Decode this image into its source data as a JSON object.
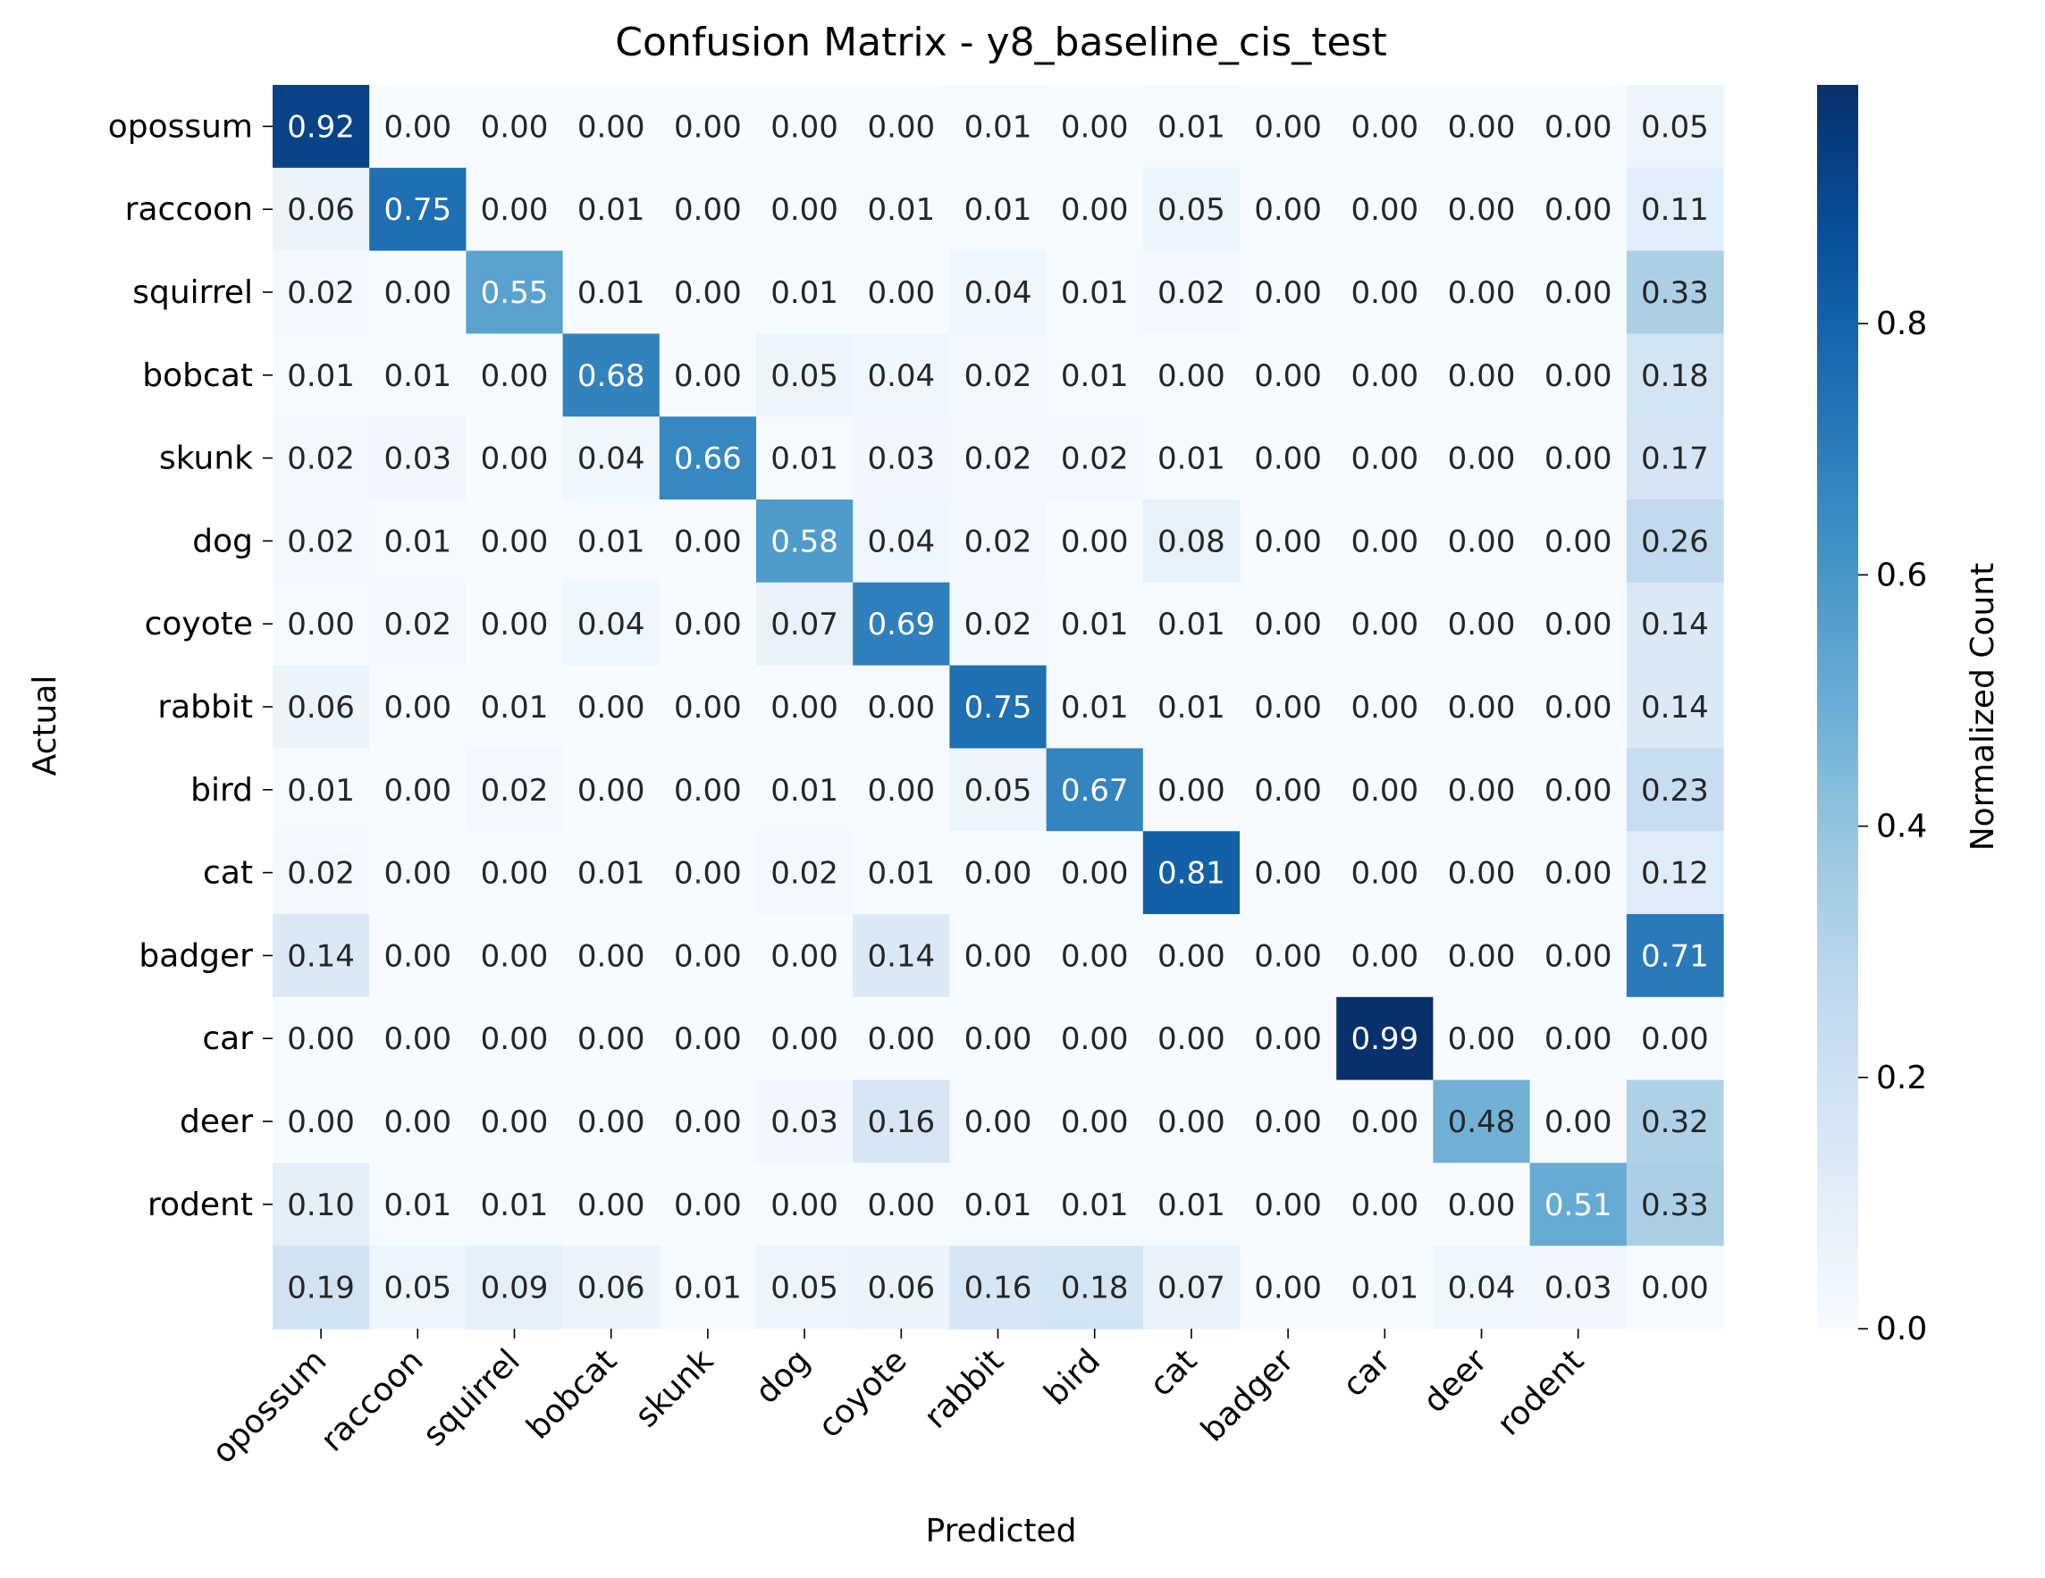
{
  "chart_data": {
    "type": "heatmap",
    "title": "Confusion Matrix - y8_baseline_cis_test",
    "xlabel": "Predicted",
    "ylabel": "Actual",
    "row_labels": [
      "opossum",
      "raccoon",
      "squirrel",
      "bobcat",
      "skunk",
      "dog",
      "coyote",
      "rabbit",
      "bird",
      "cat",
      "badger",
      "car",
      "deer",
      "rodent",
      ""
    ],
    "col_labels": [
      "opossum",
      "raccoon",
      "squirrel",
      "bobcat",
      "skunk",
      "dog",
      "coyote",
      "rabbit",
      "bird",
      "cat",
      "badger",
      "car",
      "deer",
      "rodent",
      ""
    ],
    "values": [
      [
        0.92,
        0.0,
        0.0,
        0.0,
        0.0,
        0.0,
        0.0,
        0.01,
        0.0,
        0.01,
        0.0,
        0.0,
        0.0,
        0.0,
        0.05
      ],
      [
        0.06,
        0.75,
        0.0,
        0.01,
        0.0,
        0.0,
        0.01,
        0.01,
        0.0,
        0.05,
        0.0,
        0.0,
        0.0,
        0.0,
        0.11
      ],
      [
        0.02,
        0.0,
        0.55,
        0.01,
        0.0,
        0.01,
        0.0,
        0.04,
        0.01,
        0.02,
        0.0,
        0.0,
        0.0,
        0.0,
        0.33
      ],
      [
        0.01,
        0.01,
        0.0,
        0.68,
        0.0,
        0.05,
        0.04,
        0.02,
        0.01,
        0.0,
        0.0,
        0.0,
        0.0,
        0.0,
        0.18
      ],
      [
        0.02,
        0.03,
        0.0,
        0.04,
        0.66,
        0.01,
        0.03,
        0.02,
        0.02,
        0.01,
        0.0,
        0.0,
        0.0,
        0.0,
        0.17
      ],
      [
        0.02,
        0.01,
        0.0,
        0.01,
        0.0,
        0.58,
        0.04,
        0.02,
        0.0,
        0.08,
        0.0,
        0.0,
        0.0,
        0.0,
        0.26
      ],
      [
        0.0,
        0.02,
        0.0,
        0.04,
        0.0,
        0.07,
        0.69,
        0.02,
        0.01,
        0.01,
        0.0,
        0.0,
        0.0,
        0.0,
        0.14
      ],
      [
        0.06,
        0.0,
        0.01,
        0.0,
        0.0,
        0.0,
        0.0,
        0.75,
        0.01,
        0.01,
        0.0,
        0.0,
        0.0,
        0.0,
        0.14
      ],
      [
        0.01,
        0.0,
        0.02,
        0.0,
        0.0,
        0.01,
        0.0,
        0.05,
        0.67,
        0.0,
        0.0,
        0.0,
        0.0,
        0.0,
        0.23
      ],
      [
        0.02,
        0.0,
        0.0,
        0.01,
        0.0,
        0.02,
        0.01,
        0.0,
        0.0,
        0.81,
        0.0,
        0.0,
        0.0,
        0.0,
        0.12
      ],
      [
        0.14,
        0.0,
        0.0,
        0.0,
        0.0,
        0.0,
        0.14,
        0.0,
        0.0,
        0.0,
        0.0,
        0.0,
        0.0,
        0.0,
        0.71
      ],
      [
        0.0,
        0.0,
        0.0,
        0.0,
        0.0,
        0.0,
        0.0,
        0.0,
        0.0,
        0.0,
        0.0,
        0.99,
        0.0,
        0.0,
        0.0
      ],
      [
        0.0,
        0.0,
        0.0,
        0.0,
        0.0,
        0.03,
        0.16,
        0.0,
        0.0,
        0.0,
        0.0,
        0.0,
        0.48,
        0.0,
        0.32
      ],
      [
        0.1,
        0.01,
        0.01,
        0.0,
        0.0,
        0.0,
        0.0,
        0.01,
        0.01,
        0.01,
        0.0,
        0.0,
        0.0,
        0.51,
        0.33
      ],
      [
        0.19,
        0.05,
        0.09,
        0.06,
        0.01,
        0.05,
        0.06,
        0.16,
        0.18,
        0.07,
        0.0,
        0.01,
        0.04,
        0.03,
        0.0
      ]
    ],
    "colorbar": {
      "label": "Normalized Count",
      "ticks": [
        0.0,
        0.2,
        0.4,
        0.6,
        0.8
      ],
      "tick_labels": [
        "0.0",
        "0.2",
        "0.4",
        "0.6",
        "0.8"
      ],
      "range": [
        0,
        0.99
      ],
      "colormap": "Blues"
    }
  }
}
